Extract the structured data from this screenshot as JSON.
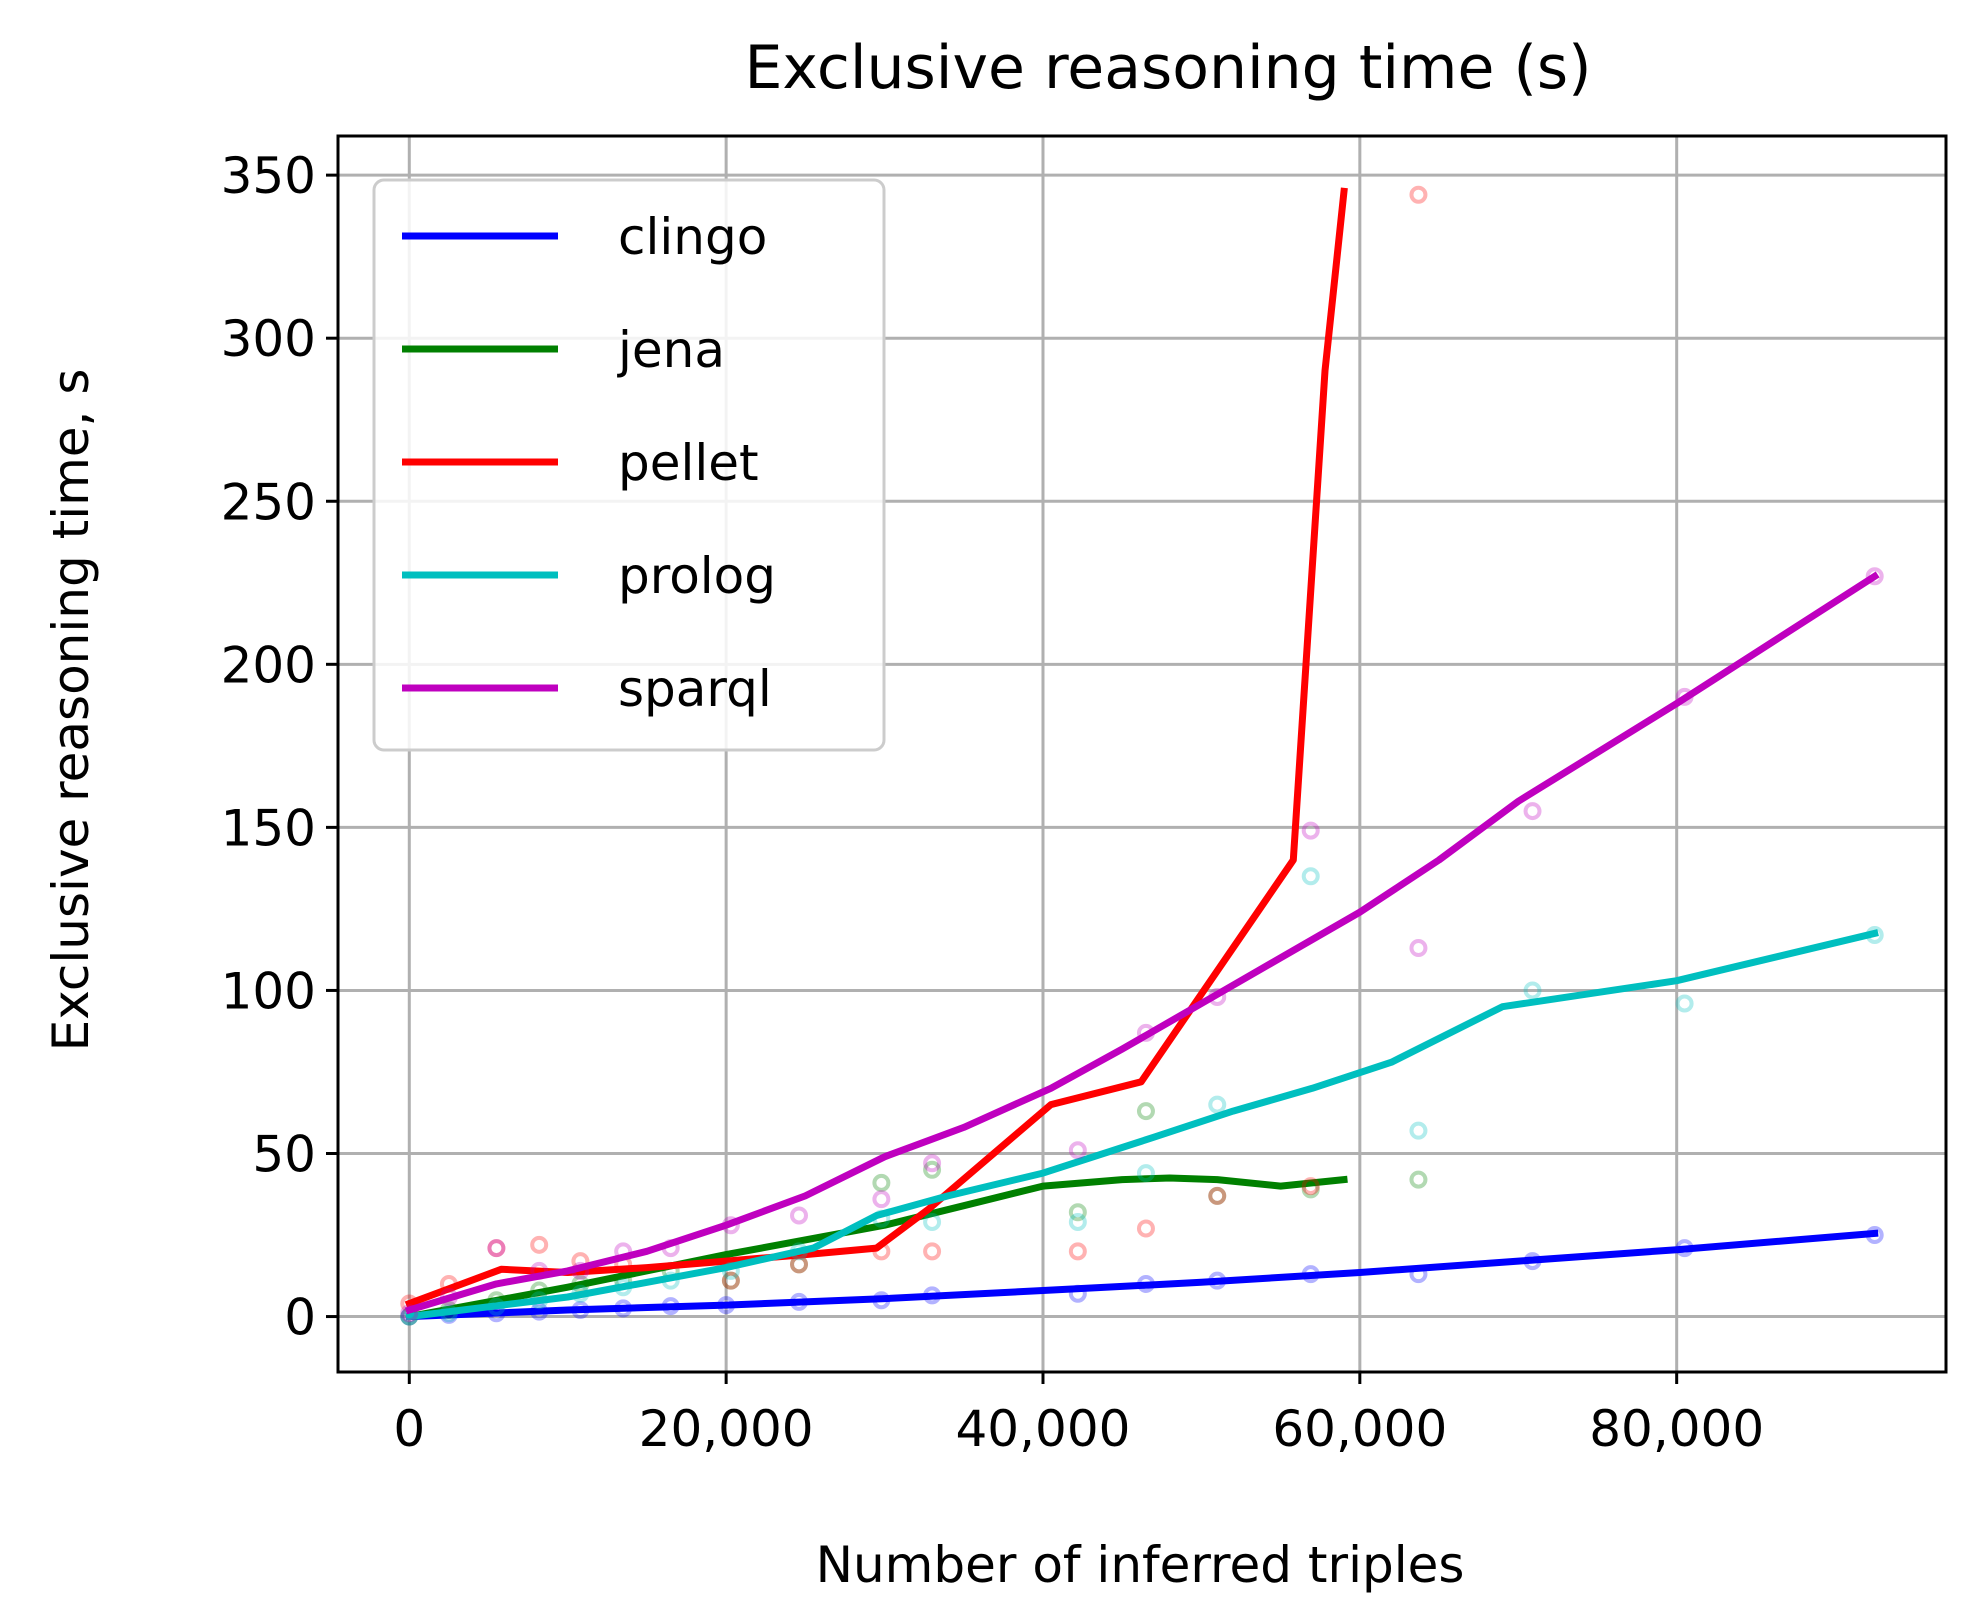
{
  "chart_data": {
    "type": "line",
    "title": "Exclusive reasoning time (s)",
    "xlabel": "Number of inferred triples",
    "ylabel": "Exclusive reasoning time, s",
    "xlim": [
      -4500,
      97000
    ],
    "ylim": [
      -17,
      362
    ],
    "xticks": [
      0,
      20000,
      40000,
      60000,
      80000
    ],
    "xtick_labels": [
      "0",
      "20,000",
      "40,000",
      "60,000",
      "80,000"
    ],
    "yticks": [
      0,
      50,
      100,
      150,
      200,
      250,
      300,
      350
    ],
    "ytick_labels": [
      "0",
      "50",
      "100",
      "150",
      "200",
      "250",
      "300",
      "350"
    ],
    "grid": true,
    "legend": "upper-left",
    "series": [
      {
        "name": "clingo",
        "color": "#0000ff",
        "line": [
          [
            0,
            0
          ],
          [
            10000,
            2
          ],
          [
            20000,
            3.5
          ],
          [
            30000,
            5.5
          ],
          [
            40000,
            8
          ],
          [
            50000,
            10.5
          ],
          [
            60000,
            13.5
          ],
          [
            70000,
            17
          ],
          [
            80000,
            20.5
          ],
          [
            92500,
            25.5
          ]
        ],
        "points": [
          [
            0,
            0
          ],
          [
            2500,
            0.5
          ],
          [
            5500,
            1
          ],
          [
            8200,
            1.5
          ],
          [
            10800,
            2
          ],
          [
            13500,
            2.5
          ],
          [
            16500,
            3.2
          ],
          [
            20000,
            3.5
          ],
          [
            24600,
            4.5
          ],
          [
            29800,
            5
          ],
          [
            33000,
            6.5
          ],
          [
            42200,
            7
          ],
          [
            46500,
            10
          ],
          [
            51000,
            11
          ],
          [
            56900,
            13
          ],
          [
            63700,
            13
          ],
          [
            70900,
            17
          ],
          [
            80500,
            21
          ],
          [
            92500,
            25
          ]
        ]
      },
      {
        "name": "jena",
        "color": "#008000",
        "line": [
          [
            0,
            0
          ],
          [
            10000,
            9
          ],
          [
            20000,
            19
          ],
          [
            30000,
            28
          ],
          [
            35000,
            34
          ],
          [
            40000,
            40
          ],
          [
            45000,
            42
          ],
          [
            48000,
            42.5
          ],
          [
            51000,
            42
          ],
          [
            55000,
            40
          ],
          [
            59000,
            42
          ]
        ],
        "points": [
          [
            0,
            0
          ],
          [
            2500,
            2
          ],
          [
            5500,
            5
          ],
          [
            8200,
            8
          ],
          [
            10800,
            10
          ],
          [
            13500,
            11
          ],
          [
            16500,
            14
          ],
          [
            20300,
            11
          ],
          [
            24600,
            16
          ],
          [
            29800,
            41
          ],
          [
            33000,
            45
          ],
          [
            42200,
            32
          ],
          [
            46500,
            63
          ],
          [
            51000,
            37
          ],
          [
            56900,
            39
          ],
          [
            63700,
            42
          ]
        ]
      },
      {
        "name": "pellet",
        "color": "#ff0000",
        "line": [
          [
            0,
            4
          ],
          [
            5800,
            14.5
          ],
          [
            10000,
            13.5
          ],
          [
            15000,
            15
          ],
          [
            20000,
            17
          ],
          [
            25000,
            19
          ],
          [
            29500,
            21
          ],
          [
            32800,
            33
          ],
          [
            40500,
            65
          ],
          [
            46200,
            72
          ],
          [
            55800,
            140
          ],
          [
            57800,
            290
          ],
          [
            59000,
            345
          ]
        ],
        "points": [
          [
            0,
            4
          ],
          [
            2500,
            10
          ],
          [
            5500,
            21
          ],
          [
            8200,
            22
          ],
          [
            10800,
            17
          ],
          [
            13500,
            16
          ],
          [
            20300,
            11
          ],
          [
            24600,
            16
          ],
          [
            29800,
            20
          ],
          [
            33000,
            20
          ],
          [
            42200,
            20
          ],
          [
            46500,
            27
          ],
          [
            51000,
            37
          ],
          [
            56900,
            40
          ],
          [
            63700,
            344
          ]
        ]
      },
      {
        "name": "prolog",
        "color": "#00bfbf",
        "line": [
          [
            0,
            0
          ],
          [
            10000,
            6
          ],
          [
            20000,
            15
          ],
          [
            25500,
            21
          ],
          [
            29500,
            31
          ],
          [
            34000,
            37
          ],
          [
            40000,
            44
          ],
          [
            47000,
            55
          ],
          [
            52000,
            63
          ],
          [
            57000,
            70
          ],
          [
            62000,
            78
          ],
          [
            69000,
            95
          ],
          [
            80000,
            103
          ],
          [
            92500,
            117.5
          ]
        ],
        "points": [
          [
            0,
            0
          ],
          [
            2500,
            1
          ],
          [
            5500,
            3
          ],
          [
            8200,
            5
          ],
          [
            10800,
            7
          ],
          [
            13500,
            9
          ],
          [
            16500,
            11
          ],
          [
            20300,
            14
          ],
          [
            24600,
            20
          ],
          [
            29800,
            30
          ],
          [
            33000,
            29
          ],
          [
            42200,
            29
          ],
          [
            46500,
            44
          ],
          [
            51000,
            65
          ],
          [
            56900,
            135
          ],
          [
            63700,
            57
          ],
          [
            70900,
            100
          ],
          [
            80500,
            96
          ],
          [
            92500,
            117
          ]
        ]
      },
      {
        "name": "sparql",
        "color": "#bf00bf",
        "line": [
          [
            0,
            2
          ],
          [
            5500,
            10
          ],
          [
            10000,
            14
          ],
          [
            15000,
            20
          ],
          [
            20000,
            28
          ],
          [
            25000,
            37
          ],
          [
            30000,
            49
          ],
          [
            35000,
            58
          ],
          [
            40500,
            70
          ],
          [
            45000,
            82
          ],
          [
            50000,
            96
          ],
          [
            55000,
            110
          ],
          [
            60000,
            124
          ],
          [
            65000,
            140
          ],
          [
            70000,
            158
          ],
          [
            80000,
            188
          ],
          [
            92500,
            227
          ]
        ],
        "points": [
          [
            0,
            1
          ],
          [
            2500,
            6
          ],
          [
            5500,
            21
          ],
          [
            8200,
            14
          ],
          [
            10800,
            14
          ],
          [
            13500,
            20
          ],
          [
            16500,
            21
          ],
          [
            20300,
            28
          ],
          [
            24600,
            31
          ],
          [
            29800,
            36
          ],
          [
            33000,
            47
          ],
          [
            42200,
            51
          ],
          [
            46500,
            87
          ],
          [
            51000,
            98
          ],
          [
            56900,
            149
          ],
          [
            63700,
            113
          ],
          [
            70900,
            155
          ],
          [
            80500,
            190
          ],
          [
            92500,
            227
          ]
        ]
      }
    ]
  }
}
